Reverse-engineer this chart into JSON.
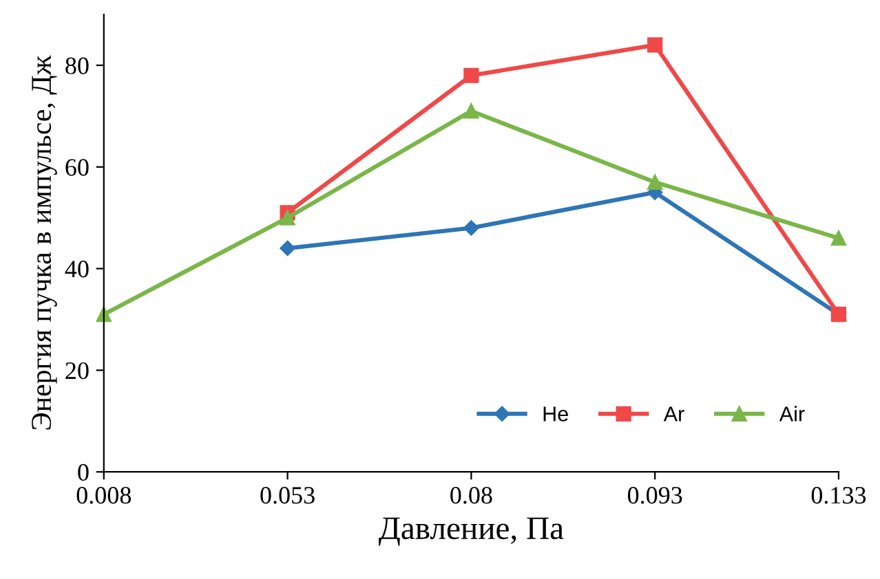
{
  "chart_data": {
    "type": "line",
    "xlabel": "Давление, Па",
    "ylabel": "Энергия пучка в импульсе, Дж",
    "categories": [
      "0.008",
      "0.053",
      "0.08",
      "0.093",
      "0.133"
    ],
    "ylim": [
      0,
      90
    ],
    "yticks": [
      0,
      20,
      40,
      60,
      80
    ],
    "grid": false,
    "legend": "bottom right",
    "series": [
      {
        "name": "He",
        "color": "#2e75b6",
        "marker": "diamond",
        "values": [
          null,
          44,
          48,
          55,
          31
        ]
      },
      {
        "name": "Ar",
        "color": "#f04848",
        "marker": "square",
        "values": [
          null,
          51,
          78,
          84,
          31
        ]
      },
      {
        "name": "Air",
        "color": "#7ab648",
        "marker": "triangle",
        "values": [
          31,
          50,
          71,
          57,
          46
        ]
      }
    ]
  }
}
